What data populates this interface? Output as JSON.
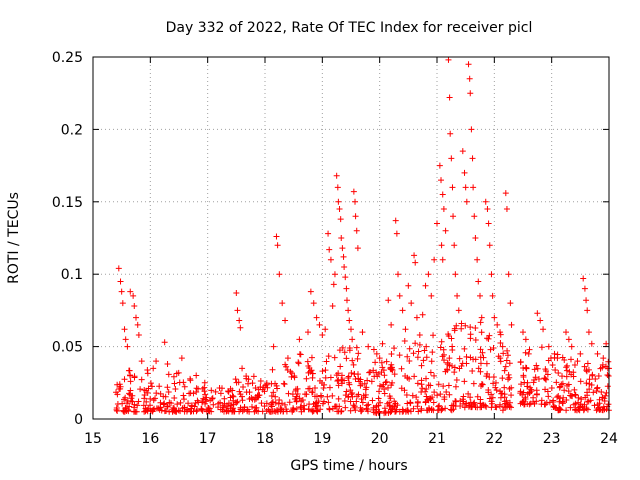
{
  "chart_data": {
    "type": "scatter",
    "title": "Day 332 of 2022, Rate Of TEC Index for receiver picl",
    "xlabel": "GPS time / hours",
    "ylabel": "ROTI / TECUs",
    "xlim": [
      15,
      24
    ],
    "ylim": [
      0,
      0.25
    ],
    "xticks": [
      "15",
      "16",
      "17",
      "18",
      "19",
      "20",
      "21",
      "22",
      "23",
      "24"
    ],
    "yticks": [
      "0",
      "0.05",
      "0.1",
      "0.15",
      "0.2",
      "0.25"
    ],
    "grid": true,
    "marker": "plus",
    "color": "#ff0000",
    "series": [
      {
        "name": "ROTI",
        "points": [
          [
            15.45,
            0.104
          ],
          [
            15.48,
            0.095
          ],
          [
            15.5,
            0.088
          ],
          [
            15.52,
            0.08
          ],
          [
            15.55,
            0.062
          ],
          [
            15.57,
            0.055
          ],
          [
            15.6,
            0.05
          ],
          [
            15.65,
            0.088
          ],
          [
            15.7,
            0.085
          ],
          [
            15.72,
            0.078
          ],
          [
            15.75,
            0.07
          ],
          [
            15.78,
            0.065
          ],
          [
            15.8,
            0.058
          ],
          [
            15.85,
            0.04
          ],
          [
            16.05,
            0.035
          ],
          [
            16.1,
            0.04
          ],
          [
            16.25,
            0.053
          ],
          [
            16.3,
            0.038
          ],
          [
            16.55,
            0.042
          ],
          [
            16.8,
            0.03
          ],
          [
            16.95,
            0.025
          ],
          [
            17.5,
            0.087
          ],
          [
            17.52,
            0.075
          ],
          [
            17.55,
            0.068
          ],
          [
            17.57,
            0.063
          ],
          [
            17.6,
            0.035
          ],
          [
            18.2,
            0.126
          ],
          [
            18.22,
            0.12
          ],
          [
            18.25,
            0.1
          ],
          [
            18.3,
            0.08
          ],
          [
            18.35,
            0.068
          ],
          [
            18.15,
            0.05
          ],
          [
            18.4,
            0.042
          ],
          [
            18.6,
            0.055
          ],
          [
            18.75,
            0.06
          ],
          [
            18.8,
            0.088
          ],
          [
            18.85,
            0.08
          ],
          [
            18.9,
            0.07
          ],
          [
            18.95,
            0.065
          ],
          [
            19.0,
            0.058
          ],
          [
            19.05,
            0.062
          ],
          [
            19.1,
            0.128
          ],
          [
            19.12,
            0.117
          ],
          [
            19.15,
            0.11
          ],
          [
            19.2,
            0.093
          ],
          [
            19.18,
            0.078
          ],
          [
            19.22,
            0.1
          ],
          [
            19.25,
            0.168
          ],
          [
            19.27,
            0.16
          ],
          [
            19.28,
            0.15
          ],
          [
            19.3,
            0.145
          ],
          [
            19.32,
            0.138
          ],
          [
            19.33,
            0.125
          ],
          [
            19.35,
            0.118
          ],
          [
            19.37,
            0.112
          ],
          [
            19.38,
            0.105
          ],
          [
            19.4,
            0.098
          ],
          [
            19.42,
            0.09
          ],
          [
            19.43,
            0.082
          ],
          [
            19.45,
            0.075
          ],
          [
            19.47,
            0.068
          ],
          [
            19.5,
            0.062
          ],
          [
            19.55,
            0.157
          ],
          [
            19.57,
            0.15
          ],
          [
            19.58,
            0.14
          ],
          [
            19.6,
            0.13
          ],
          [
            19.62,
            0.118
          ],
          [
            19.52,
            0.055
          ],
          [
            19.7,
            0.06
          ],
          [
            19.8,
            0.05
          ],
          [
            19.9,
            0.048
          ],
          [
            19.95,
            0.045
          ],
          [
            20.0,
            0.042
          ],
          [
            20.05,
            0.052
          ],
          [
            20.15,
            0.082
          ],
          [
            20.2,
            0.065
          ],
          [
            20.28,
            0.137
          ],
          [
            20.3,
            0.128
          ],
          [
            20.32,
            0.1
          ],
          [
            20.35,
            0.085
          ],
          [
            20.4,
            0.075
          ],
          [
            20.45,
            0.062
          ],
          [
            20.5,
            0.092
          ],
          [
            20.55,
            0.08
          ],
          [
            20.6,
            0.113
          ],
          [
            20.62,
            0.108
          ],
          [
            20.65,
            0.07
          ],
          [
            20.7,
            0.058
          ],
          [
            20.75,
            0.072
          ],
          [
            20.8,
            0.092
          ],
          [
            20.85,
            0.1
          ],
          [
            20.9,
            0.085
          ],
          [
            20.95,
            0.11
          ],
          [
            21.0,
            0.135
          ],
          [
            21.05,
            0.175
          ],
          [
            21.07,
            0.165
          ],
          [
            21.1,
            0.155
          ],
          [
            21.12,
            0.145
          ],
          [
            21.15,
            0.13
          ],
          [
            21.08,
            0.12
          ],
          [
            21.1,
            0.11
          ],
          [
            21.2,
            0.248
          ],
          [
            21.22,
            0.222
          ],
          [
            21.23,
            0.197
          ],
          [
            21.25,
            0.18
          ],
          [
            21.27,
            0.16
          ],
          [
            21.28,
            0.14
          ],
          [
            21.3,
            0.12
          ],
          [
            21.32,
            0.1
          ],
          [
            21.35,
            0.085
          ],
          [
            21.38,
            0.075
          ],
          [
            21.45,
            0.185
          ],
          [
            21.48,
            0.17
          ],
          [
            21.5,
            0.16
          ],
          [
            21.52,
            0.15
          ],
          [
            21.55,
            0.245
          ],
          [
            21.57,
            0.235
          ],
          [
            21.58,
            0.225
          ],
          [
            21.6,
            0.2
          ],
          [
            21.62,
            0.18
          ],
          [
            21.63,
            0.16
          ],
          [
            21.65,
            0.14
          ],
          [
            21.67,
            0.125
          ],
          [
            21.7,
            0.11
          ],
          [
            21.72,
            0.095
          ],
          [
            21.75,
            0.085
          ],
          [
            21.78,
            0.07
          ],
          [
            21.85,
            0.15
          ],
          [
            21.88,
            0.145
          ],
          [
            21.9,
            0.135
          ],
          [
            21.92,
            0.12
          ],
          [
            21.95,
            0.1
          ],
          [
            21.97,
            0.085
          ],
          [
            22.0,
            0.07
          ],
          [
            22.05,
            0.065
          ],
          [
            22.1,
            0.06
          ],
          [
            22.2,
            0.156
          ],
          [
            22.22,
            0.145
          ],
          [
            22.25,
            0.1
          ],
          [
            22.28,
            0.08
          ],
          [
            22.3,
            0.065
          ],
          [
            22.15,
            0.006
          ],
          [
            22.5,
            0.06
          ],
          [
            22.55,
            0.055
          ],
          [
            22.6,
            0.045
          ],
          [
            22.75,
            0.073
          ],
          [
            22.8,
            0.068
          ],
          [
            22.85,
            0.062
          ],
          [
            22.95,
            0.05
          ],
          [
            23.05,
            0.045
          ],
          [
            23.1,
            0.042
          ],
          [
            23.25,
            0.06
          ],
          [
            23.3,
            0.055
          ],
          [
            23.35,
            0.05
          ],
          [
            23.45,
            0.04
          ],
          [
            23.5,
            0.045
          ],
          [
            23.55,
            0.097
          ],
          [
            23.58,
            0.09
          ],
          [
            23.6,
            0.082
          ],
          [
            23.62,
            0.075
          ],
          [
            23.65,
            0.06
          ],
          [
            23.7,
            0.052
          ],
          [
            23.8,
            0.045
          ],
          [
            23.9,
            0.042
          ],
          [
            23.95,
            0.052
          ],
          [
            24.0,
            0.035
          ]
        ]
      }
    ]
  }
}
